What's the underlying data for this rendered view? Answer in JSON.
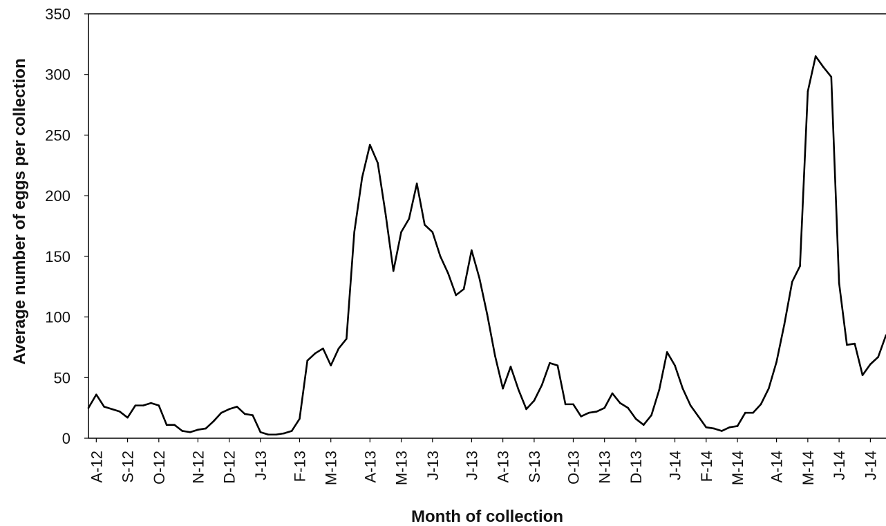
{
  "chart_data": {
    "type": "line",
    "title": "",
    "xlabel": "Month of collection",
    "ylabel": "Average number of eggs per collection",
    "ylim": [
      0,
      350
    ],
    "yticks": [
      0,
      50,
      100,
      150,
      200,
      250,
      300,
      350
    ],
    "grid": false,
    "legend": "none",
    "line_color": "#000000",
    "x_ticks": [
      {
        "label": "A-12",
        "index": 1
      },
      {
        "label": "S-12",
        "index": 5
      },
      {
        "label": "O-12",
        "index": 9
      },
      {
        "label": "N-12",
        "index": 14
      },
      {
        "label": "D-12",
        "index": 18
      },
      {
        "label": "J-13",
        "index": 22
      },
      {
        "label": "F-13",
        "index": 27
      },
      {
        "label": "M-13",
        "index": 31
      },
      {
        "label": "A-13",
        "index": 36
      },
      {
        "label": "M-13",
        "index": 40
      },
      {
        "label": "J-13",
        "index": 44
      },
      {
        "label": "J-13",
        "index": 49
      },
      {
        "label": "A-13",
        "index": 53
      },
      {
        "label": "S-13",
        "index": 57
      },
      {
        "label": "O-13",
        "index": 62
      },
      {
        "label": "N-13",
        "index": 66
      },
      {
        "label": "D-13",
        "index": 70
      },
      {
        "label": "J-14",
        "index": 75
      },
      {
        "label": "F-14",
        "index": 79
      },
      {
        "label": "M-14",
        "index": 83
      },
      {
        "label": "A-14",
        "index": 88
      },
      {
        "label": "M-14",
        "index": 92
      },
      {
        "label": "J-14",
        "index": 96
      },
      {
        "label": "J-14",
        "index": 100
      }
    ],
    "series": [
      {
        "values": [
          25,
          36,
          26,
          24,
          22,
          17,
          27,
          27,
          29,
          27,
          11,
          11,
          6,
          5,
          7,
          8,
          14,
          21,
          24,
          26,
          20,
          19,
          5,
          3,
          3,
          4,
          6,
          16,
          64,
          70,
          74,
          60,
          74,
          82,
          170,
          215,
          242,
          227,
          185,
          138,
          170,
          181,
          210,
          176,
          170,
          150,
          136,
          118,
          123,
          155,
          132,
          102,
          68,
          41,
          59,
          40,
          24,
          31,
          44,
          62,
          60,
          28,
          28,
          18,
          21,
          22,
          25,
          37,
          29,
          25,
          16,
          11,
          19,
          40,
          71,
          60,
          41,
          27,
          18,
          9,
          8,
          6,
          9,
          10,
          21,
          21,
          28,
          41,
          63,
          94,
          129,
          142,
          286,
          315,
          306,
          298,
          128,
          77,
          78,
          52,
          61,
          67,
          85
        ]
      }
    ]
  }
}
